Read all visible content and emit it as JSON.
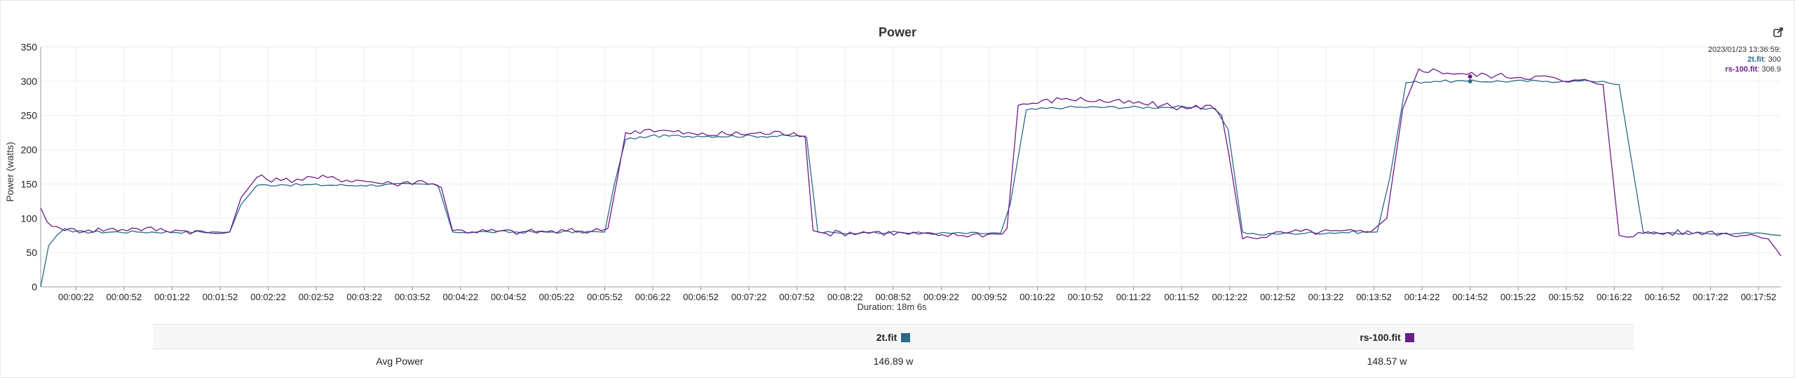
{
  "chart": {
    "title": "Power",
    "ylabel": "Power (watts)",
    "xlabel": "Duration: 18m 6s"
  },
  "tooltip": {
    "timestamp": "2023/01/23 13:36:59:",
    "entries": [
      {
        "name": "2t.fit",
        "value": "300"
      },
      {
        "name": "rs-100.fit",
        "value": "306.9"
      }
    ]
  },
  "stats": {
    "columns": [
      {
        "name": "2t.fit",
        "color": "#2b6a86"
      },
      {
        "name": "rs-100.fit",
        "color": "#6a1b87"
      }
    ],
    "rows": [
      {
        "label": "Avg Power",
        "values": [
          "146.89 w",
          "148.57 w"
        ]
      }
    ]
  },
  "chart_data": {
    "type": "line",
    "title": "Power",
    "ylabel": "Power (watts)",
    "xlabel": "Duration: 18m 6s",
    "ylim": [
      0,
      350
    ],
    "yticks": [
      0,
      50,
      100,
      150,
      200,
      250,
      300,
      350
    ],
    "xlim_seconds": [
      0,
      1086
    ],
    "xticks": [
      "00:00:22",
      "00:00:52",
      "00:01:22",
      "00:01:52",
      "00:02:22",
      "00:02:52",
      "00:03:22",
      "00:03:52",
      "00:04:22",
      "00:04:52",
      "00:05:22",
      "00:05:52",
      "00:06:22",
      "00:06:52",
      "00:07:22",
      "00:07:52",
      "00:08:22",
      "00:08:52",
      "00:09:22",
      "00:09:52",
      "00:10:22",
      "00:10:52",
      "00:11:22",
      "00:11:52",
      "00:12:22",
      "00:12:52",
      "00:13:22",
      "00:13:52",
      "00:14:22",
      "00:14:52",
      "00:15:22",
      "00:15:52",
      "00:16:22",
      "00:16:52",
      "00:17:22",
      "00:17:52"
    ],
    "grid": true,
    "series": [
      {
        "name": "2t.fit",
        "color": "#2b6a86",
        "x": [
          0,
          5,
          10,
          15,
          20,
          60,
          110,
          118,
          125,
          135,
          150,
          200,
          238,
          248,
          257,
          280,
          320,
          350,
          352,
          358,
          365,
          380,
          410,
          475,
          478,
          485,
          500,
          520,
          560,
          599,
          605,
          615,
          640,
          700,
          715,
          733,
          741,
          750,
          760,
          780,
          825,
          834,
          842,
          852,
          870,
          890,
          940,
          950,
          967,
          975,
          985,
          1000,
          1010,
          1060,
          1068,
          1075,
          1080,
          1086
        ],
        "values": [
          0,
          60,
          75,
          85,
          80,
          80,
          80,
          80,
          120,
          148,
          149,
          148,
          150,
          148,
          80,
          80,
          80,
          80,
          80,
          150,
          215,
          220,
          220,
          220,
          218,
          80,
          78,
          80,
          78,
          78,
          120,
          258,
          262,
          262,
          262,
          260,
          230,
          80,
          76,
          78,
          80,
          80,
          160,
          298,
          300,
          300,
          300,
          300,
          300,
          300,
          295,
          80,
          78,
          78,
          78,
          78,
          76,
          75
        ]
      },
      {
        "name": "rs-100.fit",
        "color": "#6a1b87",
        "x": [
          0,
          4,
          10,
          15,
          30,
          60,
          90,
          110,
          118,
          125,
          135,
          150,
          170,
          200,
          220,
          238,
          245,
          250,
          257,
          300,
          350,
          354,
          360,
          365,
          380,
          410,
          470,
          477,
          482,
          490,
          520,
          560,
          597,
          603,
          610,
          640,
          700,
          715,
          730,
          737,
          741,
          750,
          780,
          830,
          840,
          850,
          860,
          890,
          945,
          950,
          967,
          975,
          985,
          1000,
          1040,
          1070,
          1078,
          1083,
          1086
        ],
        "values": [
          115,
          95,
          88,
          82,
          83,
          85,
          82,
          78,
          80,
          130,
          160,
          155,
          160,
          155,
          150,
          155,
          150,
          145,
          82,
          80,
          82,
          85,
          160,
          225,
          230,
          222,
          225,
          220,
          82,
          78,
          80,
          75,
          77,
          85,
          265,
          275,
          265,
          260,
          265,
          250,
          200,
          70,
          80,
          80,
          100,
          260,
          318,
          310,
          305,
          300,
          300,
          295,
          75,
          78,
          80,
          75,
          70,
          55,
          45
        ]
      }
    ]
  }
}
